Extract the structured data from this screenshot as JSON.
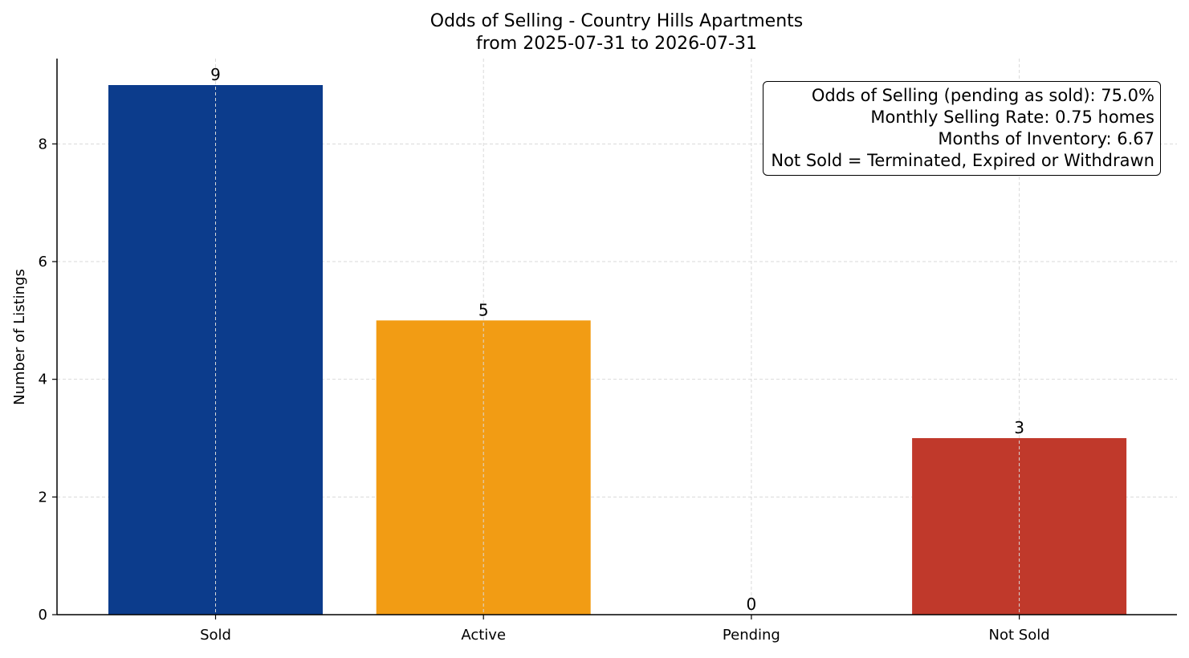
{
  "chart_data": {
    "type": "bar",
    "title_line1": "Odds of Selling - Country Hills Apartments",
    "title_line2": "from 2025-07-31 to 2026-07-31",
    "ylabel": "Number of Listings",
    "xlabel": "",
    "categories": [
      "Sold",
      "Active",
      "Pending",
      "Not Sold"
    ],
    "values": [
      9,
      5,
      0,
      3
    ],
    "value_labels": [
      "9",
      "5",
      "0",
      "3"
    ],
    "bar_colors": [
      "#0c3c8c",
      "#f29c14",
      "#27ae60",
      "#c0392b"
    ],
    "ylim": [
      0,
      9.45
    ],
    "yticks": [
      0,
      2,
      4,
      6,
      8
    ],
    "ytick_labels": [
      "0",
      "2",
      "4",
      "6",
      "8"
    ],
    "grid": true,
    "annotations": [
      "Odds of Selling (pending as sold): 75.0%",
      "Monthly Selling Rate: 0.75 homes",
      "Months of Inventory: 6.67",
      "Not Sold = Terminated, Expired or Withdrawn"
    ],
    "annotation_placement": "top-right"
  }
}
